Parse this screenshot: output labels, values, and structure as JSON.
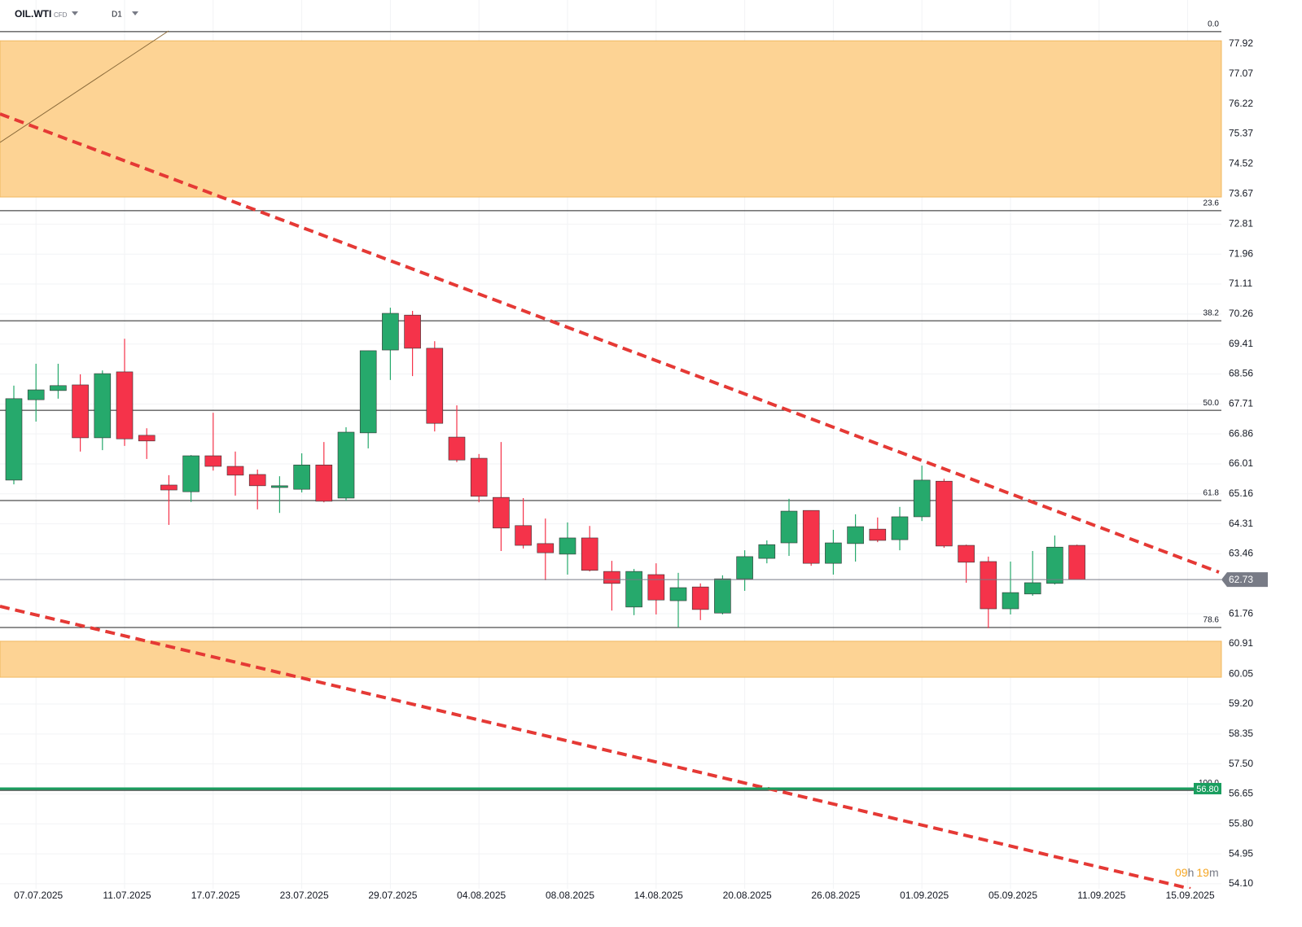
{
  "header": {
    "symbol": "OIL.WTI",
    "instrument_type": "CFD",
    "timeframe": "D1"
  },
  "countdown": [
    "09",
    "h",
    "19",
    "m"
  ],
  "chart_data": {
    "type": "candlestick",
    "categories": [
      null,
      "07.07.2025",
      null,
      null,
      null,
      "11.07.2025",
      null,
      null,
      null,
      "17.07.2025",
      null,
      null,
      null,
      "23.07.2025",
      null,
      null,
      null,
      "29.07.2025",
      null,
      null,
      null,
      "04.08.2025",
      null,
      null,
      null,
      "08.08.2025",
      null,
      null,
      null,
      "14.08.2025",
      null,
      null,
      null,
      "20.08.2025",
      null,
      null,
      null,
      "26.08.2025",
      null,
      null,
      null,
      "01.09.2025",
      null,
      null,
      null,
      "05.09.2025",
      null,
      null,
      null,
      "11.09.2025",
      null,
      null,
      null,
      "15.09.2025"
    ],
    "open": [
      65.55,
      67.83,
      68.09,
      68.25,
      66.75,
      68.62,
      66.82,
      65.41,
      65.22,
      66.24,
      65.94,
      65.71,
      65.34,
      65.29,
      65.98,
      65.04,
      66.89,
      69.24,
      70.23,
      69.29,
      66.77,
      66.17,
      65.06,
      64.26,
      63.75,
      63.45,
      63.91,
      62.96,
      61.95,
      62.87,
      62.13,
      62.52,
      61.78,
      62.75,
      63.33,
      63.77,
      64.69,
      63.19,
      63.75,
      64.16,
      63.86,
      64.51,
      65.52,
      63.7,
      63.24,
      61.9,
      62.32,
      62.62,
      63.7,
      null,
      null,
      null,
      null,
      null
    ],
    "high": [
      68.23,
      68.85,
      68.85,
      68.55,
      68.66,
      69.56,
      67.02,
      65.69,
      66.26,
      67.46,
      66.36,
      65.85,
      65.66,
      66.31,
      66.63,
      67.05,
      69.22,
      70.44,
      70.35,
      69.49,
      67.67,
      66.29,
      66.63,
      65.04,
      64.46,
      64.35,
      64.25,
      63.26,
      63.03,
      63.19,
      62.92,
      62.62,
      62.85,
      63.56,
      63.84,
      65.02,
      64.69,
      64.14,
      64.58,
      64.49,
      64.79,
      65.96,
      65.59,
      63.72,
      63.38,
      63.24,
      63.54,
      63.98,
      63.72,
      null,
      null,
      null,
      null,
      null
    ],
    "low": [
      65.43,
      67.21,
      67.86,
      66.36,
      66.4,
      66.52,
      66.15,
      64.28,
      64.93,
      65.82,
      65.11,
      64.72,
      64.62,
      65.2,
      64.92,
      64.97,
      66.45,
      68.39,
      68.5,
      66.93,
      66.06,
      64.92,
      63.54,
      63.61,
      62.71,
      62.87,
      62.96,
      61.85,
      61.72,
      61.74,
      61.37,
      61.58,
      61.74,
      62.41,
      63.19,
      63.4,
      63.12,
      62.87,
      63.24,
      63.79,
      63.56,
      64.39,
      63.63,
      62.64,
      61.35,
      61.74,
      62.27,
      62.59,
      62.73,
      null,
      null,
      null,
      null,
      null
    ],
    "close": [
      67.86,
      68.11,
      68.23,
      66.75,
      68.57,
      66.72,
      66.66,
      65.27,
      66.24,
      65.94,
      65.69,
      65.39,
      65.39,
      65.98,
      64.95,
      66.91,
      69.22,
      70.28,
      69.29,
      67.16,
      66.12,
      65.09,
      64.19,
      63.7,
      63.49,
      63.91,
      62.99,
      62.62,
      62.96,
      62.15,
      62.5,
      61.88,
      62.75,
      63.38,
      63.72,
      64.67,
      63.19,
      63.77,
      64.23,
      63.84,
      64.51,
      65.55,
      63.68,
      63.22,
      61.9,
      62.36,
      62.64,
      63.65,
      62.73,
      null,
      null,
      null,
      null,
      null
    ],
    "up_color": "#26a96c",
    "down_color": "#f5334a",
    "ylim": [
      53.96,
      78.29
    ],
    "yticks": [
      77.92,
      77.07,
      76.22,
      75.37,
      74.52,
      73.67,
      72.81,
      71.96,
      71.11,
      70.26,
      69.41,
      68.56,
      67.71,
      66.86,
      66.01,
      65.16,
      64.31,
      63.46,
      61.76,
      60.91,
      60.05,
      {
        "value": 59.2,
        "label": "59.20"
      },
      58.35,
      {
        "value": 57.5,
        "label": "57.50"
      },
      56.65,
      {
        "value": 55.8,
        "label": "55.80"
      },
      54.95,
      {
        "value": 54.1,
        "label": "54.10"
      }
    ],
    "grid": true,
    "zones": [
      {
        "from": 73.58,
        "to": 78.01,
        "color": "#fdd394"
      },
      {
        "from": 59.96,
        "to": 60.98,
        "color": "#fdd394"
      }
    ],
    "fib_levels": [
      {
        "label": "0.0",
        "value": 78.27
      },
      {
        "label": "23.6",
        "value": 73.19
      },
      {
        "label": "38.2",
        "value": 70.07
      },
      {
        "label": "50.0",
        "value": 67.53
      },
      {
        "label": "61.8",
        "value": 64.97
      },
      {
        "label": "78.6",
        "value": 61.37
      },
      {
        "label": "100.0",
        "value": 56.75
      }
    ],
    "price_lines": [
      {
        "value": 62.73,
        "color": "#787b86"
      },
      {
        "value": 56.8,
        "label": "56.80",
        "color": "#1a9e5f"
      }
    ]
  }
}
